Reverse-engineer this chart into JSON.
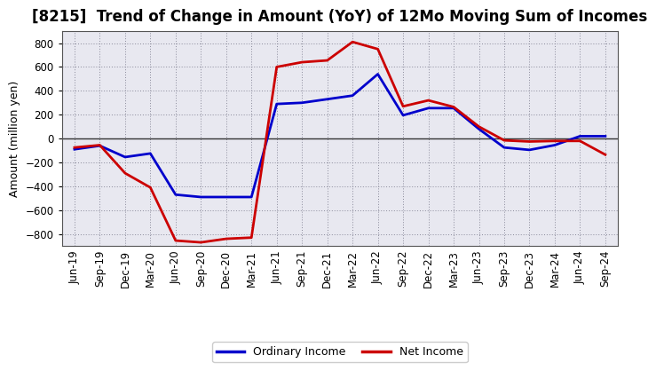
{
  "title": "[8215]  Trend of Change in Amount (YoY) of 12Mo Moving Sum of Incomes",
  "ylabel": "Amount (million yen)",
  "xlabels": [
    "Jun-19",
    "Sep-19",
    "Dec-19",
    "Mar-20",
    "Jun-20",
    "Sep-20",
    "Dec-20",
    "Mar-21",
    "Jun-21",
    "Sep-21",
    "Dec-21",
    "Mar-22",
    "Jun-22",
    "Sep-22",
    "Dec-22",
    "Mar-23",
    "Jun-23",
    "Sep-23",
    "Dec-23",
    "Mar-24",
    "Jun-24",
    "Sep-24"
  ],
  "ordinary_income": [
    -90,
    -60,
    -155,
    -125,
    -470,
    -490,
    -490,
    -490,
    290,
    300,
    330,
    360,
    540,
    195,
    255,
    255,
    80,
    -75,
    -95,
    -55,
    20,
    20
  ],
  "net_income": [
    -75,
    -55,
    -290,
    -410,
    -855,
    -870,
    -840,
    -830,
    600,
    640,
    655,
    810,
    750,
    270,
    320,
    265,
    100,
    -15,
    -25,
    -20,
    -20,
    -135
  ],
  "ordinary_color": "#0000cc",
  "net_color": "#cc0000",
  "ylim": [
    -900,
    900
  ],
  "yticks": [
    -800,
    -600,
    -400,
    -200,
    0,
    200,
    400,
    600,
    800
  ],
  "bg_color": "#ffffff",
  "plot_bg_color": "#e8e8f0",
  "grid_color": "#888899",
  "line_width": 2.0,
  "title_fontsize": 12,
  "label_fontsize": 9,
  "tick_fontsize": 8.5
}
